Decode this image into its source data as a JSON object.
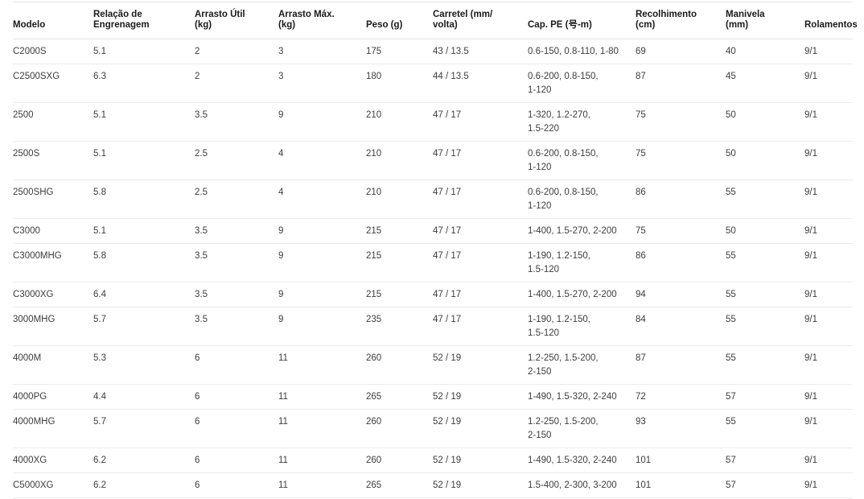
{
  "table": {
    "column_keys": [
      "modelo",
      "relacao_engrenagem",
      "arrasto_util",
      "arrasto_max",
      "peso",
      "carretel",
      "cap_pe",
      "recolhimento",
      "manivela",
      "rolamentos"
    ],
    "columns": [
      {
        "key": "modelo",
        "label": "Modelo"
      },
      {
        "key": "relacao_engrenagem",
        "label": "Relação de\nEngrenagem"
      },
      {
        "key": "arrasto_util",
        "label": "Arrasto Útil\n(kg)"
      },
      {
        "key": "arrasto_max",
        "label": "Arrasto Máx.\n(kg)"
      },
      {
        "key": "peso",
        "label": "Peso (g)"
      },
      {
        "key": "carretel",
        "label": "Carretel (mm/\nvolta)"
      },
      {
        "key": "cap_pe",
        "label": "Cap. PE (号-m)"
      },
      {
        "key": "recolhimento",
        "label": "Recolhimento\n(cm)"
      },
      {
        "key": "manivela",
        "label": "Manivela\n(mm)"
      },
      {
        "key": "rolamentos",
        "label": "Rolamentos"
      }
    ],
    "rows": [
      {
        "modelo": "C2000S",
        "relacao_engrenagem": "5.1",
        "arrasto_util": "2",
        "arrasto_max": "3",
        "peso": "175",
        "carretel": "43 / 13.5",
        "cap_pe": "0.6-150, 0.8-110, 1-80",
        "recolhimento": "69",
        "manivela": "40",
        "rolamentos": "9/1"
      },
      {
        "modelo": "C2500SXG",
        "relacao_engrenagem": "6.3",
        "arrasto_util": "2",
        "arrasto_max": "3",
        "peso": "180",
        "carretel": "44 / 13.5",
        "cap_pe": "0.6-200, 0.8-150,\n1-120",
        "recolhimento": "87",
        "manivela": "45",
        "rolamentos": "9/1"
      },
      {
        "modelo": "2500",
        "relacao_engrenagem": "5.1",
        "arrasto_util": "3.5",
        "arrasto_max": "9",
        "peso": "210",
        "carretel": "47 / 17",
        "cap_pe": "1-320, 1.2-270,\n1.5-220",
        "recolhimento": "75",
        "manivela": "50",
        "rolamentos": "9/1"
      },
      {
        "modelo": "2500S",
        "relacao_engrenagem": "5.1",
        "arrasto_util": "2.5",
        "arrasto_max": "4",
        "peso": "210",
        "carretel": "47 / 17",
        "cap_pe": "0.6-200, 0.8-150,\n1-120",
        "recolhimento": "75",
        "manivela": "50",
        "rolamentos": "9/1"
      },
      {
        "modelo": "2500SHG",
        "relacao_engrenagem": "5.8",
        "arrasto_util": "2.5",
        "arrasto_max": "4",
        "peso": "210",
        "carretel": "47 / 17",
        "cap_pe": "0.6-200, 0.8-150,\n1-120",
        "recolhimento": "86",
        "manivela": "55",
        "rolamentos": "9/1"
      },
      {
        "modelo": "C3000",
        "relacao_engrenagem": "5.1",
        "arrasto_util": "3.5",
        "arrasto_max": "9",
        "peso": "215",
        "carretel": "47 / 17",
        "cap_pe": "1-400, 1.5-270, 2-200",
        "recolhimento": "75",
        "manivela": "50",
        "rolamentos": "9/1"
      },
      {
        "modelo": "C3000MHG",
        "relacao_engrenagem": "5.8",
        "arrasto_util": "3.5",
        "arrasto_max": "9",
        "peso": "215",
        "carretel": "47 / 17",
        "cap_pe": "1-190, 1.2-150,\n1.5-120",
        "recolhimento": "86",
        "manivela": "55",
        "rolamentos": "9/1"
      },
      {
        "modelo": "C3000XG",
        "relacao_engrenagem": "6.4",
        "arrasto_util": "3.5",
        "arrasto_max": "9",
        "peso": "215",
        "carretel": "47 / 17",
        "cap_pe": "1-400, 1.5-270, 2-200",
        "recolhimento": "94",
        "manivela": "55",
        "rolamentos": "9/1"
      },
      {
        "modelo": "3000MHG",
        "relacao_engrenagem": "5.7",
        "arrasto_util": "3.5",
        "arrasto_max": "9",
        "peso": "235",
        "carretel": "47 / 17",
        "cap_pe": "1-190, 1.2-150,\n1.5-120",
        "recolhimento": "84",
        "manivela": "55",
        "rolamentos": "9/1"
      },
      {
        "modelo": "4000M",
        "relacao_engrenagem": "5.3",
        "arrasto_util": "6",
        "arrasto_max": "11",
        "peso": "260",
        "carretel": "52 / 19",
        "cap_pe": "1.2-250, 1.5-200,\n2-150",
        "recolhimento": "87",
        "manivela": "55",
        "rolamentos": "9/1"
      },
      {
        "modelo": "4000PG",
        "relacao_engrenagem": "4.4",
        "arrasto_util": "6",
        "arrasto_max": "11",
        "peso": "265",
        "carretel": "52 / 19",
        "cap_pe": "1-490, 1.5-320, 2-240",
        "recolhimento": "72",
        "manivela": "57",
        "rolamentos": "9/1"
      },
      {
        "modelo": "4000MHG",
        "relacao_engrenagem": "5.7",
        "arrasto_util": "6",
        "arrasto_max": "11",
        "peso": "260",
        "carretel": "52 / 19",
        "cap_pe": "1.2-250, 1.5-200,\n2-150",
        "recolhimento": "93",
        "manivela": "55",
        "rolamentos": "9/1"
      },
      {
        "modelo": "4000XG",
        "relacao_engrenagem": "6.2",
        "arrasto_util": "6",
        "arrasto_max": "11",
        "peso": "260",
        "carretel": "52 / 19",
        "cap_pe": "1-490, 1.5-320, 2-240",
        "recolhimento": "101",
        "manivela": "57",
        "rolamentos": "9/1"
      },
      {
        "modelo": "C5000XG",
        "relacao_engrenagem": "6.2",
        "arrasto_util": "6",
        "arrasto_max": "11",
        "peso": "265",
        "carretel": "52 / 19",
        "cap_pe": "1.5-400, 2-300, 3-200",
        "recolhimento": "101",
        "manivela": "57",
        "rolamentos": "9/1"
      }
    ]
  },
  "colors": {
    "background": "#ffffff",
    "header_text": "#1a1a1a",
    "body_text": "#3d3d3d",
    "divider": "#e8e8e8"
  }
}
